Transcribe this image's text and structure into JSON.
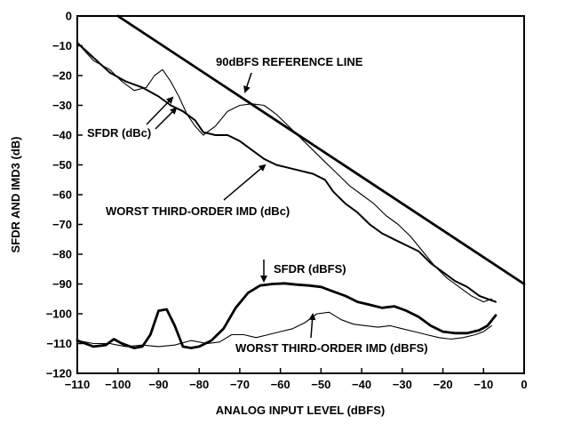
{
  "chart_data": {
    "type": "line",
    "xlabel": "ANALOG INPUT LEVEL (dBFS)",
    "ylabel": "SFDR AND IMD3 (dB)",
    "xlim": [
      -110,
      0
    ],
    "ylim": [
      -120,
      0
    ],
    "x_ticks": [
      "−110",
      "−100",
      "−90",
      "−80",
      "−70",
      "−60",
      "−50",
      "−40",
      "−30",
      "−20",
      "−10",
      "0"
    ],
    "y_ticks": [
      "0",
      "−10",
      "−20",
      "−30",
      "−40",
      "−50",
      "−60",
      "−70",
      "−80",
      "−90",
      "−100",
      "−110",
      "−120"
    ],
    "grid": false,
    "series": [
      {
        "name": "90dBFS REFERENCE LINE",
        "style": "thick",
        "points": [
          [
            -100,
            0
          ],
          [
            0,
            -90
          ]
        ]
      },
      {
        "name": "SFDR (dBc)",
        "style": "thin",
        "points": [
          [
            -110,
            -9
          ],
          [
            -106,
            -15
          ],
          [
            -102,
            -18
          ],
          [
            -99,
            -22
          ],
          [
            -96,
            -25
          ],
          [
            -93,
            -24
          ],
          [
            -91,
            -20
          ],
          [
            -89,
            -18
          ],
          [
            -87,
            -22
          ],
          [
            -85,
            -27
          ],
          [
            -83,
            -33
          ],
          [
            -81,
            -37
          ],
          [
            -79,
            -40
          ],
          [
            -76,
            -37
          ],
          [
            -73,
            -32
          ],
          [
            -70,
            -30
          ],
          [
            -67,
            -29.5
          ],
          [
            -64,
            -30
          ],
          [
            -61,
            -33
          ],
          [
            -58,
            -37
          ],
          [
            -55,
            -41
          ],
          [
            -52,
            -45
          ],
          [
            -49,
            -49
          ],
          [
            -46,
            -53
          ],
          [
            -43,
            -57
          ],
          [
            -40,
            -60
          ],
          [
            -37,
            -63
          ],
          [
            -34,
            -67
          ],
          [
            -31,
            -70
          ],
          [
            -28,
            -74
          ],
          [
            -25,
            -79
          ],
          [
            -22,
            -84
          ],
          [
            -19,
            -88
          ],
          [
            -16,
            -91
          ],
          [
            -13,
            -94
          ],
          [
            -10,
            -96
          ],
          [
            -8,
            -95
          ]
        ]
      },
      {
        "name": "WORST THIRD-ORDER IMD (dBc)",
        "style": "medium",
        "points": [
          [
            -110,
            -9
          ],
          [
            -106,
            -14
          ],
          [
            -102,
            -19
          ],
          [
            -98,
            -22
          ],
          [
            -94,
            -24
          ],
          [
            -90,
            -27
          ],
          [
            -87,
            -30
          ],
          [
            -84,
            -32
          ],
          [
            -81,
            -35
          ],
          [
            -79,
            -39
          ],
          [
            -76,
            -40
          ],
          [
            -73,
            -40
          ],
          [
            -70,
            -42
          ],
          [
            -67,
            -45
          ],
          [
            -64,
            -48
          ],
          [
            -61,
            -50
          ],
          [
            -58,
            -51
          ],
          [
            -55,
            -52
          ],
          [
            -52,
            -53
          ],
          [
            -49,
            -55
          ],
          [
            -47,
            -59
          ],
          [
            -44,
            -63
          ],
          [
            -41,
            -66
          ],
          [
            -38,
            -70
          ],
          [
            -35,
            -73
          ],
          [
            -32,
            -75
          ],
          [
            -29,
            -77
          ],
          [
            -26,
            -79
          ],
          [
            -23,
            -83
          ],
          [
            -20,
            -86
          ],
          [
            -17,
            -89
          ],
          [
            -14,
            -91
          ],
          [
            -11,
            -94
          ],
          [
            -9,
            -95
          ],
          [
            -7,
            -96
          ]
        ]
      },
      {
        "name": "SFDR (dBFS)",
        "style": "thick",
        "points": [
          [
            -110,
            -109
          ],
          [
            -106,
            -111
          ],
          [
            -103,
            -110.5
          ],
          [
            -101,
            -108.5
          ],
          [
            -99,
            -110
          ],
          [
            -96,
            -111.5
          ],
          [
            -94,
            -111
          ],
          [
            -92,
            -107
          ],
          [
            -90,
            -99
          ],
          [
            -88,
            -98.5
          ],
          [
            -86,
            -104
          ],
          [
            -84,
            -111
          ],
          [
            -82,
            -111.5
          ],
          [
            -80,
            -111
          ],
          [
            -77,
            -109
          ],
          [
            -74,
            -105
          ],
          [
            -71,
            -98
          ],
          [
            -68,
            -93
          ],
          [
            -65,
            -90.5
          ],
          [
            -62,
            -90
          ],
          [
            -59,
            -89.8
          ],
          [
            -56,
            -90.2
          ],
          [
            -53,
            -90.5
          ],
          [
            -50,
            -91
          ],
          [
            -47,
            -92.5
          ],
          [
            -44,
            -94
          ],
          [
            -41,
            -96
          ],
          [
            -38,
            -97
          ],
          [
            -35,
            -98
          ],
          [
            -32,
            -97.5
          ],
          [
            -29,
            -99
          ],
          [
            -26,
            -101
          ],
          [
            -23,
            -104
          ],
          [
            -20,
            -106
          ],
          [
            -17,
            -106.5
          ],
          [
            -14,
            -106.5
          ],
          [
            -11,
            -105.5
          ],
          [
            -9,
            -104
          ],
          [
            -7,
            -100.5
          ]
        ]
      },
      {
        "name": "WORST THIRD-ORDER IMD (dBFS)",
        "style": "thin",
        "points": [
          [
            -110,
            -109
          ],
          [
            -106,
            -110
          ],
          [
            -102,
            -110
          ],
          [
            -98,
            -111
          ],
          [
            -94,
            -110.5
          ],
          [
            -90,
            -111
          ],
          [
            -86,
            -110.5
          ],
          [
            -82,
            -109
          ],
          [
            -78,
            -110
          ],
          [
            -75,
            -109.5
          ],
          [
            -72,
            -107
          ],
          [
            -69,
            -107
          ],
          [
            -66,
            -108
          ],
          [
            -63,
            -107
          ],
          [
            -60,
            -106
          ],
          [
            -57,
            -105
          ],
          [
            -54,
            -103
          ],
          [
            -51,
            -100
          ],
          [
            -48,
            -99.5
          ],
          [
            -45,
            -102
          ],
          [
            -42,
            -103.5
          ],
          [
            -39,
            -104
          ],
          [
            -36,
            -104.5
          ],
          [
            -33,
            -104
          ],
          [
            -30,
            -105
          ],
          [
            -27,
            -106
          ],
          [
            -24,
            -107
          ],
          [
            -21,
            -108
          ],
          [
            -18,
            -108.5
          ],
          [
            -15,
            -108
          ],
          [
            -12,
            -107
          ],
          [
            -10,
            -106
          ],
          [
            -8,
            -104
          ]
        ]
      }
    ],
    "annotations": [
      {
        "text": "90dBFS REFERENCE LINE"
      },
      {
        "text": "SFDR (dBc)"
      },
      {
        "text": "WORST THIRD-ORDER IMD (dBc)"
      },
      {
        "text": "SFDR (dBFS)"
      },
      {
        "text": "WORST THIRD-ORDER IMD (dBFS)"
      }
    ]
  }
}
